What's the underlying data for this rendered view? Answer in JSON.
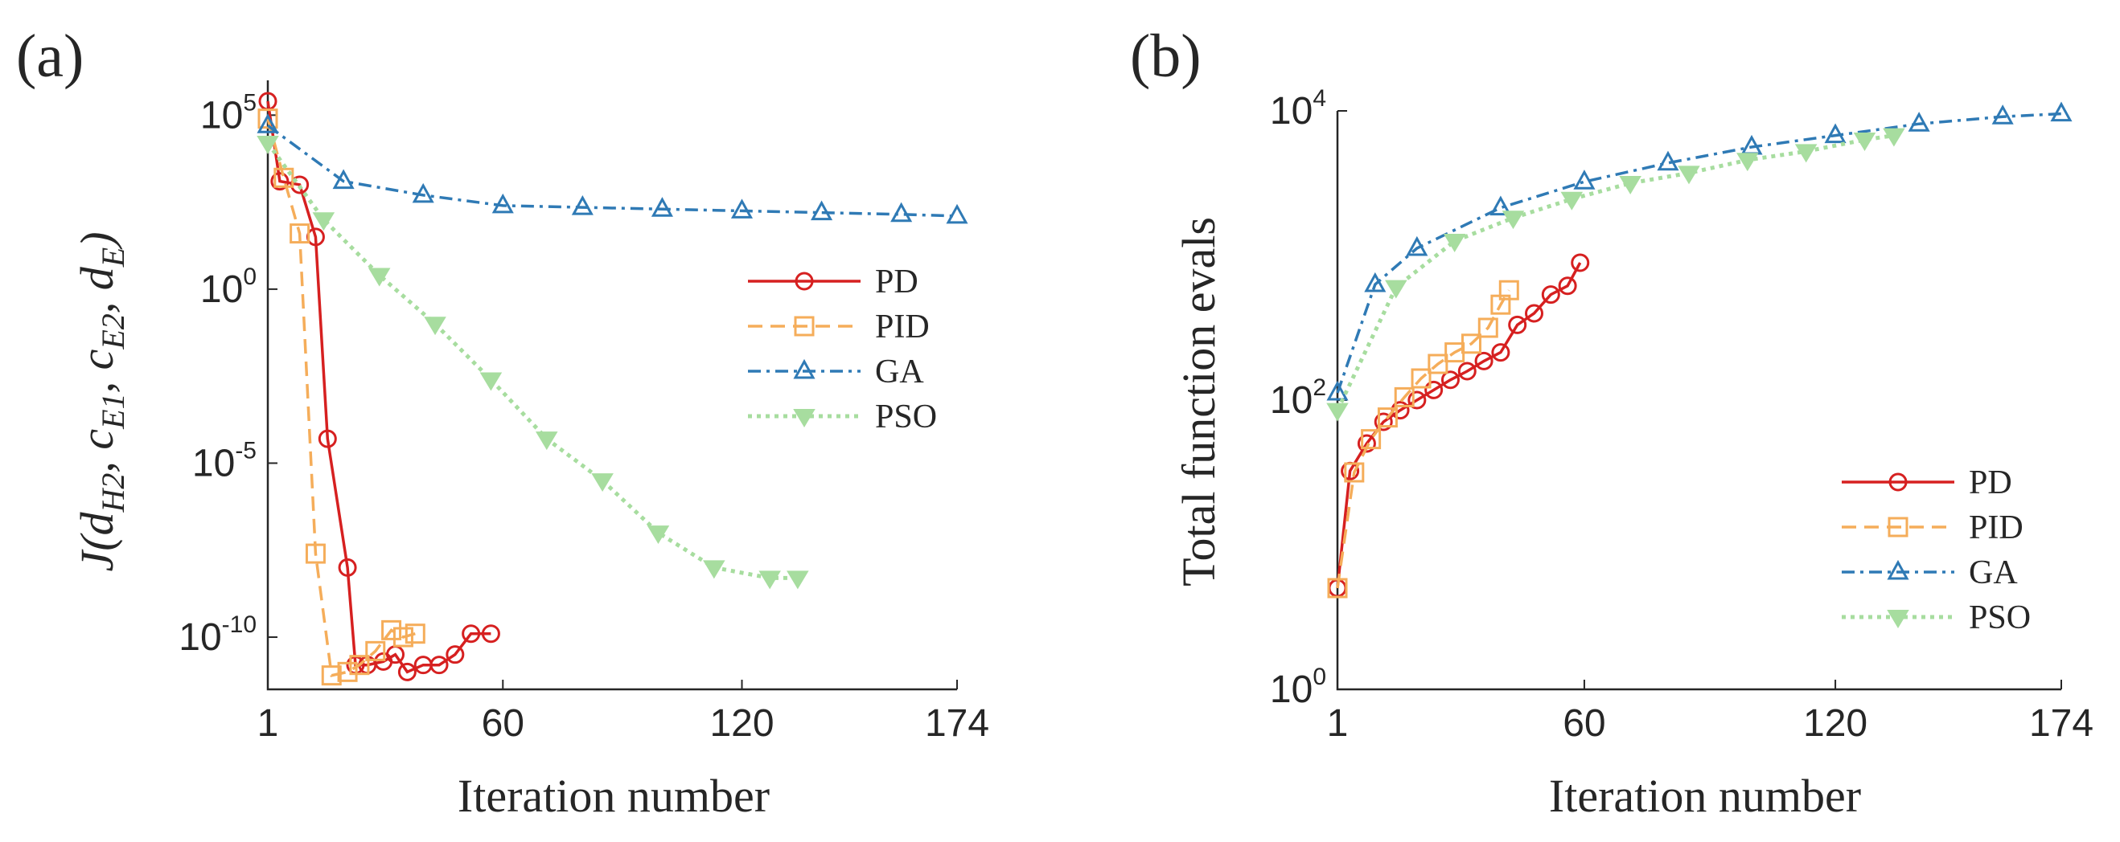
{
  "chart_data": [
    {
      "panel": "(a)",
      "type": "line",
      "xlabel": "Iteration number",
      "ylabel": "J(d_H2, c_E1, c_E2, d_E)",
      "yscale": "log",
      "xlim": [
        1,
        174
      ],
      "ylim_log10": [
        -11.5,
        6
      ],
      "xticks": [
        1,
        60,
        120,
        174
      ],
      "yticks": [
        {
          "base": "10",
          "exp": "5",
          "log": 5
        },
        {
          "base": "10",
          "exp": "0",
          "log": 0
        },
        {
          "base": "10",
          "exp": "-5",
          "log": -5
        },
        {
          "base": "10",
          "exp": "-10",
          "log": -10
        }
      ],
      "legend": {
        "position": "right"
      },
      "series": [
        {
          "name": "PD",
          "color": "#d62020",
          "dash": "solid",
          "marker": "circle",
          "marker_every": 1,
          "points": [
            [
              1,
              5.4
            ],
            [
              4,
              3.1
            ],
            [
              9,
              3.0
            ],
            [
              13,
              1.5
            ],
            [
              16,
              -4.3
            ],
            [
              21,
              -8.0
            ],
            [
              23,
              -10.8
            ],
            [
              26,
              -10.8
            ],
            [
              30,
              -10.7
            ],
            [
              33,
              -10.5
            ],
            [
              36,
              -11.0
            ],
            [
              40,
              -10.8
            ],
            [
              44,
              -10.8
            ],
            [
              48,
              -10.5
            ],
            [
              52,
              -9.9
            ],
            [
              57,
              -9.9
            ]
          ]
        },
        {
          "name": "PID",
          "color": "#f5ad5a",
          "dash": "dashed",
          "marker": "square",
          "marker_every": 1,
          "points": [
            [
              1,
              4.9
            ],
            [
              5,
              3.2
            ],
            [
              9,
              1.6
            ],
            [
              13,
              -7.6
            ],
            [
              17,
              -11.1
            ],
            [
              21,
              -11.0
            ],
            [
              24,
              -10.8
            ],
            [
              28,
              -10.4
            ],
            [
              32,
              -9.8
            ],
            [
              35,
              -10.0
            ],
            [
              38,
              -9.9
            ]
          ]
        },
        {
          "name": "GA",
          "color": "#2f7ab5",
          "dash": "dashdot",
          "marker": "triangle",
          "marker_every": 10,
          "points": [
            [
              1,
              4.7
            ],
            [
              20,
              3.1
            ],
            [
              40,
              2.7
            ],
            [
              60,
              2.4
            ],
            [
              80,
              2.35
            ],
            [
              100,
              2.3
            ],
            [
              120,
              2.25
            ],
            [
              140,
              2.2
            ],
            [
              160,
              2.15
            ],
            [
              174,
              2.1
            ]
          ]
        },
        {
          "name": "PSO",
          "color": "#a7dd9f",
          "dash": "dotted",
          "marker": "triangle-down",
          "marker_every": 5,
          "points": [
            [
              1,
              4.2
            ],
            [
              15,
              2.0
            ],
            [
              29,
              0.4
            ],
            [
              43,
              -1.0
            ],
            [
              57,
              -2.6
            ],
            [
              71,
              -4.3
            ],
            [
              85,
              -5.5
            ],
            [
              99,
              -7.0
            ],
            [
              113,
              -8.0
            ],
            [
              127,
              -8.3
            ],
            [
              134,
              -8.3
            ]
          ]
        }
      ]
    },
    {
      "panel": "(b)",
      "type": "line",
      "xlabel": "Iteration number",
      "ylabel": "Total function evals",
      "yscale": "log",
      "xlim": [
        1,
        174
      ],
      "ylim_log10": [
        0,
        4
      ],
      "xticks": [
        1,
        60,
        120,
        174
      ],
      "yticks": [
        {
          "base": "10",
          "exp": "4",
          "log": 4
        },
        {
          "base": "10",
          "exp": "2",
          "log": 2
        },
        {
          "base": "10",
          "exp": "0",
          "log": 0
        }
      ],
      "legend": {
        "position": "bottom-right"
      },
      "series": [
        {
          "name": "PD",
          "color": "#d62020",
          "dash": "solid",
          "marker": "circle",
          "marker_every": 1,
          "points": [
            [
              1,
              0.7
            ],
            [
              4,
              1.51
            ],
            [
              8,
              1.7
            ],
            [
              12,
              1.85
            ],
            [
              16,
              1.93
            ],
            [
              20,
              2.0
            ],
            [
              24,
              2.07
            ],
            [
              28,
              2.14
            ],
            [
              32,
              2.2
            ],
            [
              36,
              2.27
            ],
            [
              40,
              2.33
            ],
            [
              44,
              2.52
            ],
            [
              48,
              2.6
            ],
            [
              52,
              2.73
            ],
            [
              56,
              2.79
            ],
            [
              59,
              2.95
            ]
          ]
        },
        {
          "name": "PID",
          "color": "#f5ad5a",
          "dash": "dashed",
          "marker": "square",
          "marker_every": 1,
          "points": [
            [
              1,
              0.7
            ],
            [
              5,
              1.5
            ],
            [
              9,
              1.73
            ],
            [
              13,
              1.88
            ],
            [
              17,
              2.02
            ],
            [
              21,
              2.15
            ],
            [
              25,
              2.25
            ],
            [
              29,
              2.33
            ],
            [
              33,
              2.39
            ],
            [
              37,
              2.5
            ],
            [
              40,
              2.66
            ],
            [
              42,
              2.76
            ]
          ]
        },
        {
          "name": "GA",
          "color": "#2f7ab5",
          "dash": "dashdot",
          "marker": "triangle",
          "marker_every": 10,
          "points": [
            [
              1,
              2.05
            ],
            [
              10,
              2.8
            ],
            [
              20,
              3.05
            ],
            [
              40,
              3.33
            ],
            [
              60,
              3.51
            ],
            [
              80,
              3.64
            ],
            [
              100,
              3.75
            ],
            [
              120,
              3.83
            ],
            [
              140,
              3.91
            ],
            [
              160,
              3.96
            ],
            [
              174,
              3.98
            ]
          ]
        },
        {
          "name": "PSO",
          "color": "#a7dd9f",
          "dash": "dotted",
          "marker": "triangle-down",
          "marker_every": 5,
          "points": [
            [
              1,
              1.93
            ],
            [
              15,
              2.78
            ],
            [
              29,
              3.1
            ],
            [
              43,
              3.26
            ],
            [
              57,
              3.39
            ],
            [
              71,
              3.5
            ],
            [
              85,
              3.57
            ],
            [
              99,
              3.66
            ],
            [
              113,
              3.72
            ],
            [
              127,
              3.8
            ],
            [
              134,
              3.83
            ]
          ]
        }
      ]
    }
  ]
}
